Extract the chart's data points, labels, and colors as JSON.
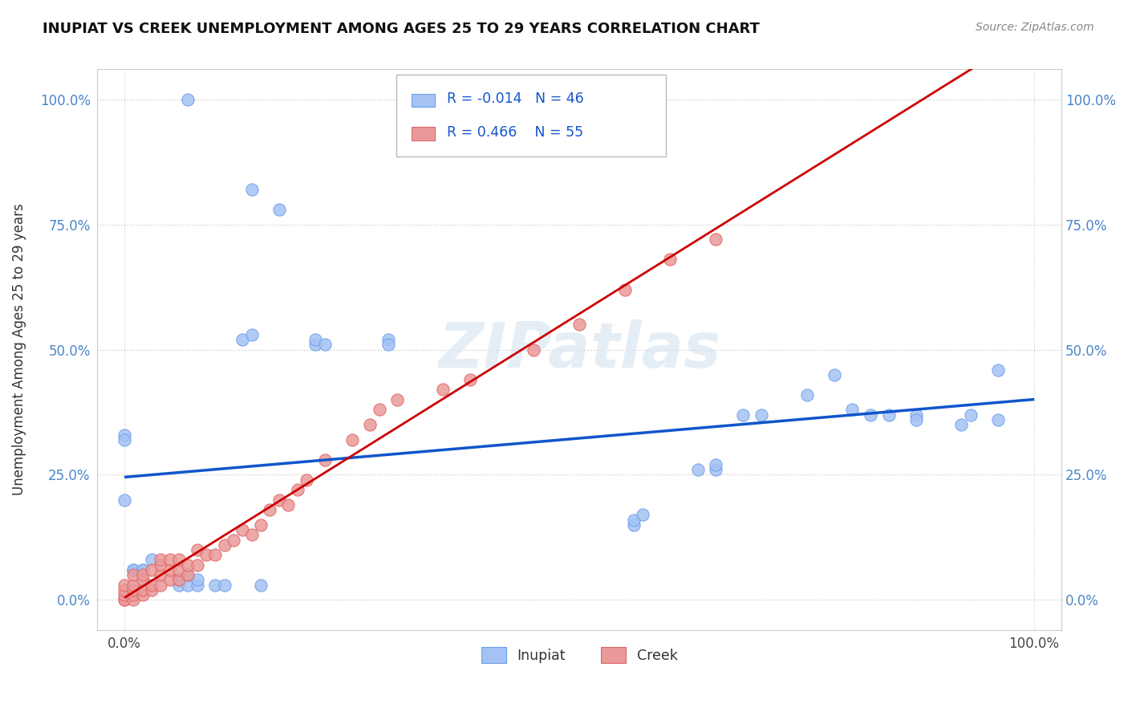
{
  "title": "INUPIAT VS CREEK UNEMPLOYMENT AMONG AGES 25 TO 29 YEARS CORRELATION CHART",
  "source": "Source: ZipAtlas.com",
  "ylabel": "Unemployment Among Ages 25 to 29 years",
  "xlim": [
    -0.03,
    1.03
  ],
  "ylim": [
    -0.06,
    1.06
  ],
  "x_ticks": [
    0.0,
    1.0
  ],
  "x_tick_labels": [
    "0.0%",
    "100.0%"
  ],
  "y_ticks": [
    0.0,
    0.25,
    0.5,
    0.75,
    1.0
  ],
  "y_tick_labels": [
    "0.0%",
    "25.0%",
    "50.0%",
    "75.0%",
    "100.0%"
  ],
  "watermark": "ZIPatlas",
  "inupiat_R": "-0.014",
  "inupiat_N": "46",
  "creek_R": "0.466",
  "creek_N": "55",
  "inupiat_color": "#a4c2f4",
  "inupiat_edge_color": "#6d9eeb",
  "creek_color": "#ea9999",
  "creek_edge_color": "#e06666",
  "inupiat_line_color": "#1155cc",
  "creek_line_color": "#cc0000",
  "legend_r_n_color": "#1155cc",
  "inupiat_x": [
    0.07,
    0.14,
    0.17,
    0.13,
    0.14,
    0.21,
    0.21,
    0.22,
    0.29,
    0.29,
    0.0,
    0.0,
    0.0,
    0.01,
    0.01,
    0.02,
    0.02,
    0.03,
    0.06,
    0.06,
    0.07,
    0.07,
    0.08,
    0.08,
    0.1,
    0.11,
    0.15,
    0.56,
    0.56,
    0.57,
    0.63,
    0.65,
    0.65,
    0.68,
    0.7,
    0.75,
    0.78,
    0.8,
    0.82,
    0.84,
    0.87,
    0.87,
    0.92,
    0.93,
    0.96,
    0.96
  ],
  "inupiat_y": [
    1.0,
    0.82,
    0.78,
    0.52,
    0.53,
    0.51,
    0.52,
    0.51,
    0.52,
    0.51,
    0.33,
    0.32,
    0.2,
    0.06,
    0.06,
    0.06,
    0.06,
    0.08,
    0.03,
    0.04,
    0.03,
    0.05,
    0.03,
    0.04,
    0.03,
    0.03,
    0.03,
    0.15,
    0.16,
    0.17,
    0.26,
    0.26,
    0.27,
    0.37,
    0.37,
    0.41,
    0.45,
    0.38,
    0.37,
    0.37,
    0.37,
    0.36,
    0.35,
    0.37,
    0.36,
    0.46
  ],
  "creek_x": [
    0.0,
    0.0,
    0.0,
    0.0,
    0.0,
    0.01,
    0.01,
    0.01,
    0.01,
    0.01,
    0.02,
    0.02,
    0.02,
    0.02,
    0.03,
    0.03,
    0.03,
    0.04,
    0.04,
    0.04,
    0.04,
    0.05,
    0.05,
    0.05,
    0.06,
    0.06,
    0.06,
    0.07,
    0.07,
    0.08,
    0.08,
    0.09,
    0.1,
    0.11,
    0.12,
    0.13,
    0.14,
    0.15,
    0.16,
    0.17,
    0.18,
    0.19,
    0.2,
    0.22,
    0.25,
    0.27,
    0.28,
    0.3,
    0.35,
    0.38,
    0.45,
    0.5,
    0.55,
    0.6,
    0.65
  ],
  "creek_y": [
    0.0,
    0.0,
    0.01,
    0.02,
    0.03,
    0.0,
    0.01,
    0.02,
    0.03,
    0.05,
    0.01,
    0.02,
    0.04,
    0.05,
    0.02,
    0.03,
    0.06,
    0.03,
    0.05,
    0.07,
    0.08,
    0.04,
    0.06,
    0.08,
    0.04,
    0.06,
    0.08,
    0.05,
    0.07,
    0.07,
    0.1,
    0.09,
    0.09,
    0.11,
    0.12,
    0.14,
    0.13,
    0.15,
    0.18,
    0.2,
    0.19,
    0.22,
    0.24,
    0.28,
    0.32,
    0.35,
    0.38,
    0.4,
    0.42,
    0.44,
    0.5,
    0.55,
    0.62,
    0.68,
    0.72
  ]
}
